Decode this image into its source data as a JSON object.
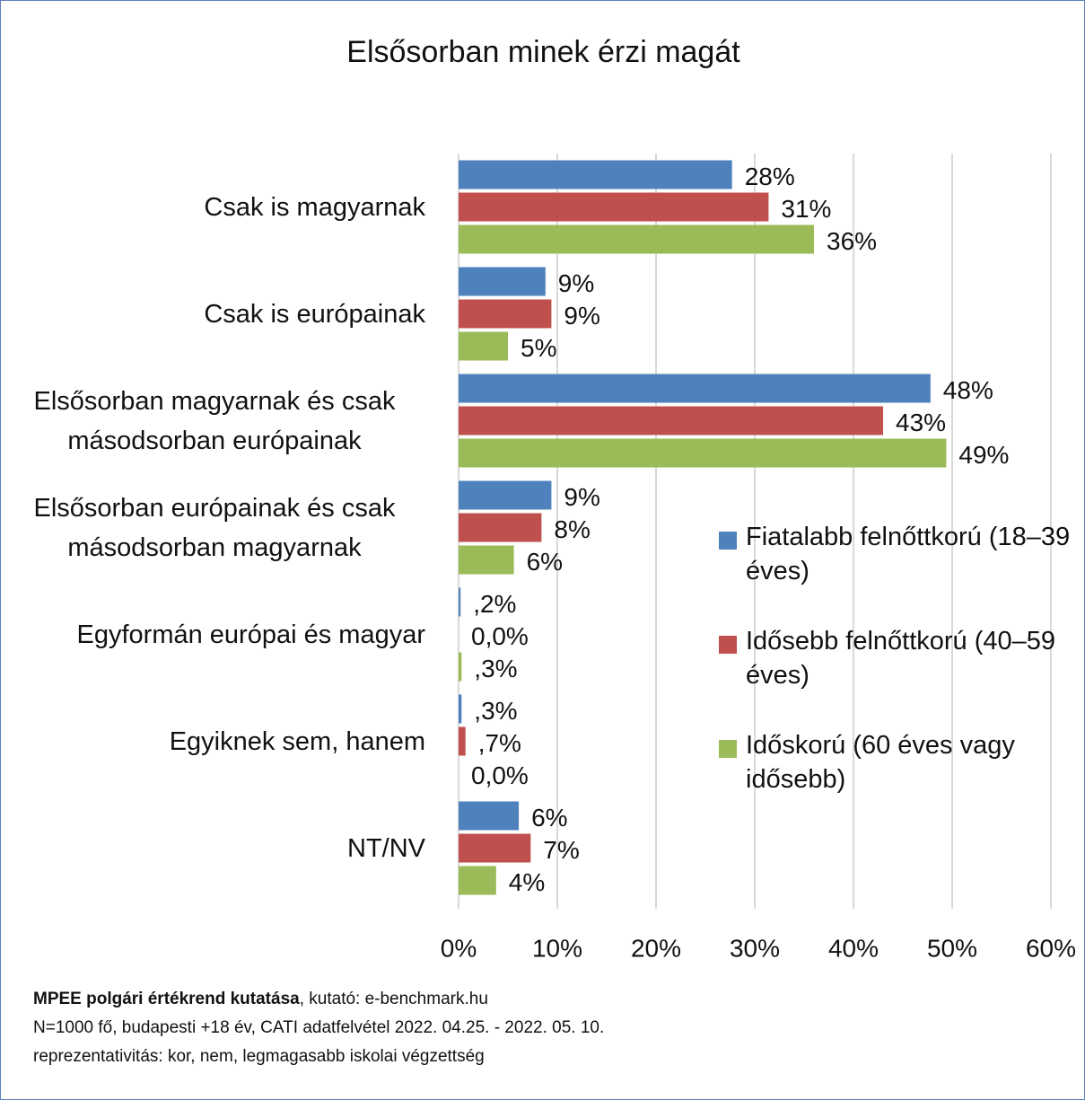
{
  "chart_data": {
    "type": "hbar",
    "title": "Elsősorban minek érzi magát",
    "categories": [
      "Csak is magyarnak",
      "Csak is európainak",
      "Elsősorban magyarnak és csak másodsorban európainak",
      "Elsősorban európainak és csak másodsorban magyarnak",
      "Egyformán európai és magyar",
      "Egyiknek sem, hanem",
      "NT/NV"
    ],
    "series": [
      {
        "name": "Fiatalabb felnőttkorú (18–39 éves)",
        "color": "#4f81bd",
        "values": [
          27.7,
          8.8,
          47.8,
          9.4,
          0.2,
          0.3,
          6.1
        ],
        "value_labels": [
          "28%",
          "9%",
          "48%",
          "9%",
          ",2%",
          ",3%",
          "6%"
        ]
      },
      {
        "name": "Idősebb felnőttkorú (40–59 éves)",
        "color": "#c0504d",
        "values": [
          31.4,
          9.4,
          43,
          8.4,
          0,
          0.7,
          7.3
        ],
        "value_labels": [
          "31%",
          "9%",
          "43%",
          "8%",
          "0,0%",
          ",7%",
          "7%"
        ]
      },
      {
        "name": "Időskorú (60 éves vagy idősebb)",
        "color": "#9bbb59",
        "values": [
          36,
          5,
          49.4,
          5.6,
          0.3,
          0,
          3.8
        ],
        "value_labels": [
          "36%",
          "5%",
          "49%",
          "6%",
          ",3%",
          "0,0%",
          "4%"
        ]
      }
    ],
    "xlim": [
      0,
      60
    ],
    "xticks": [
      {
        "value": 0,
        "label": "0%"
      },
      {
        "value": 10,
        "label": "10%"
      },
      {
        "value": 20,
        "label": "20%"
      },
      {
        "value": 30,
        "label": "30%"
      },
      {
        "value": 40,
        "label": "40%"
      },
      {
        "value": 50,
        "label": "50%"
      },
      {
        "value": 60,
        "label": "60%"
      }
    ],
    "grid": true,
    "legend": "right",
    "source_bold": "MPEE polgári értékrend kutatása",
    "source_rest": ", kutató: e-benchmark.hu",
    "notes": [
      "N=1000 fő, budapesti +18 év, CATI adatfelvétel 2022. 04.25. - 2022. 05. 10.",
      "reprezentativitás: kor, nem, legmagasabb iskolai végzettség"
    ]
  }
}
